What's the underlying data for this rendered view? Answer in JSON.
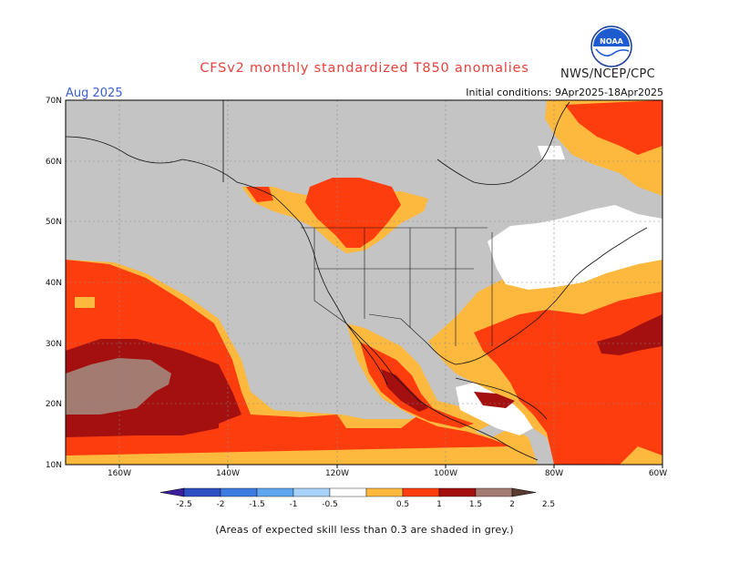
{
  "header": {
    "title": "CFSv2 monthly standardized T850 anomalies",
    "org": "NWS/NCEP/CPC",
    "logo_text": "NOAA",
    "valid_month": "Aug 2025",
    "initial_conditions": "Initial conditions: 9Apr2025-18Apr2025"
  },
  "axes": {
    "lat_labels": [
      "70N",
      "60N",
      "50N",
      "40N",
      "30N",
      "20N",
      "10N"
    ],
    "lon_labels": [
      "160W",
      "140W",
      "120W",
      "100W",
      "80W",
      "60W"
    ]
  },
  "colorbar": {
    "tick_labels": [
      "-2.5",
      "-2",
      "-1.5",
      "-1",
      "-0.5",
      "0.5",
      "1",
      "1.5",
      "2",
      "2.5"
    ],
    "colors": [
      "#3b1fa0",
      "#2e4fc2",
      "#3d7be0",
      "#5fa6ef",
      "#a8d2f7",
      "#ffffff",
      "#fdb83e",
      "#fe3d0e",
      "#a3100f",
      "#a37b70",
      "#5b3c33"
    ],
    "grey_color": "#c4c4c4"
  },
  "footnote": "(Areas of expected skill less than 0.3 are shaded in grey.)"
}
